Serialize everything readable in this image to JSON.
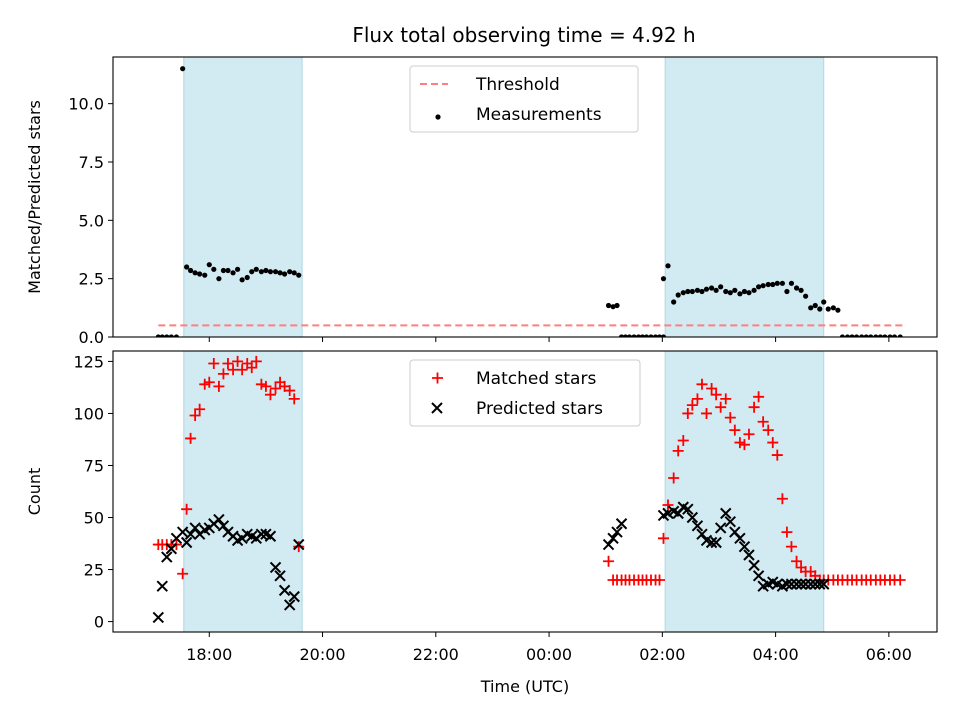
{
  "title": "Flux total observing time = 4.92 h",
  "colors": {
    "shade": "#add8e6",
    "threshold": "#ff7f7f",
    "measurement": "#000000",
    "matched": "#ff0000",
    "predicted": "#000000"
  },
  "chart_data": [
    {
      "type": "scatter",
      "ylabel": "Matched/Predicted stars",
      "ylim": [
        0,
        12
      ],
      "yticks": [
        "0.0",
        "2.5",
        "5.0",
        "7.5",
        "10.0"
      ],
      "ytick_values": [
        0,
        2.5,
        5,
        7.5,
        10
      ],
      "legend": [
        "Threshold",
        "Measurements"
      ],
      "legend_placement": "upper center",
      "threshold": {
        "name": "Threshold",
        "value": 0.5,
        "x": [
          17.1,
          30.25
        ]
      },
      "shaded_intervals": [
        [
          17.55,
          19.64
        ],
        [
          26.05,
          28.85
        ]
      ],
      "series": [
        {
          "name": "Measurements",
          "x": [
            17.1,
            17.17,
            17.25,
            17.33,
            17.42,
            17.53,
            17.6,
            17.67,
            17.75,
            17.83,
            17.92,
            18,
            18.08,
            18.17,
            18.25,
            18.33,
            18.42,
            18.5,
            18.58,
            18.67,
            18.75,
            18.83,
            18.92,
            19,
            19.08,
            19.17,
            19.25,
            19.33,
            19.42,
            19.5,
            19.58,
            25.05,
            25.13,
            25.2,
            25.28,
            25.35,
            25.42,
            25.5,
            25.58,
            25.65,
            25.72,
            25.8,
            25.88,
            25.95,
            26.02,
            26.02,
            26.1,
            26.2,
            26.28,
            26.37,
            26.45,
            26.53,
            26.62,
            26.7,
            26.78,
            26.87,
            26.95,
            27.03,
            27.12,
            27.2,
            27.28,
            27.37,
            27.45,
            27.53,
            27.62,
            27.7,
            27.78,
            27.87,
            27.95,
            28.03,
            28.12,
            28.2,
            28.28,
            28.37,
            28.45,
            28.53,
            28.62,
            28.7,
            28.78,
            28.85,
            28.93,
            29.02,
            29.1,
            29.18,
            29.27,
            29.35,
            29.43,
            29.52,
            29.6,
            29.68,
            29.77,
            29.85,
            29.93,
            30.02,
            30.1,
            30.2
          ],
          "y": [
            0,
            0,
            0,
            0,
            0,
            11.5,
            3,
            2.85,
            2.75,
            2.7,
            2.65,
            3.1,
            2.9,
            2.5,
            2.85,
            2.85,
            2.75,
            2.9,
            2.45,
            2.55,
            2.8,
            2.9,
            2.8,
            2.85,
            2.8,
            2.8,
            2.75,
            2.7,
            2.8,
            2.75,
            2.65,
            1.35,
            1.3,
            1.35,
            0,
            0,
            0,
            0,
            0,
            0,
            0,
            0,
            0,
            0,
            0,
            2.5,
            3.05,
            1.5,
            1.8,
            1.9,
            1.95,
            1.95,
            2,
            1.95,
            2.05,
            2.1,
            2,
            2.15,
            1.95,
            1.9,
            2,
            1.85,
            1.95,
            1.9,
            2,
            2.15,
            2.2,
            2.25,
            2.25,
            2.3,
            2.3,
            1.95,
            2.3,
            2.1,
            2,
            1.75,
            1.25,
            1.35,
            1.2,
            1.5,
            1.2,
            1.25,
            1.15,
            0,
            0,
            0,
            0,
            0,
            0,
            0,
            0,
            0,
            0,
            0,
            0,
            0
          ]
        }
      ]
    },
    {
      "type": "scatter",
      "ylabel": "Count",
      "xlabel": "Time (UTC)",
      "ylim": [
        -5,
        130
      ],
      "yticks": [
        "0",
        "25",
        "50",
        "75",
        "100",
        "125"
      ],
      "ytick_values": [
        0,
        25,
        50,
        75,
        100,
        125
      ],
      "xlim": [
        16.3,
        30.85
      ],
      "xticks": [
        "18:00",
        "20:00",
        "22:00",
        "00:00",
        "02:00",
        "04:00",
        "06:00"
      ],
      "xtick_values": [
        18,
        20,
        22,
        24,
        26,
        28,
        30
      ],
      "legend": [
        "Matched stars",
        "Predicted stars"
      ],
      "legend_placement": "upper center",
      "shaded_intervals": [
        [
          17.55,
          19.64
        ],
        [
          26.05,
          28.85
        ]
      ],
      "series": [
        {
          "name": "Matched stars",
          "marker": "+",
          "x": [
            17.1,
            17.17,
            17.25,
            17.33,
            17.42,
            17.53,
            17.6,
            17.67,
            17.75,
            17.83,
            17.92,
            18,
            18.08,
            18.17,
            18.25,
            18.33,
            18.42,
            18.5,
            18.58,
            18.67,
            18.75,
            18.83,
            18.92,
            19,
            19.08,
            19.17,
            19.25,
            19.33,
            19.42,
            19.5,
            19.58,
            25.05,
            25.13,
            25.2,
            25.28,
            25.35,
            25.42,
            25.5,
            25.58,
            25.65,
            25.72,
            25.8,
            25.88,
            25.95,
            26.02,
            26.1,
            26.2,
            26.28,
            26.37,
            26.45,
            26.53,
            26.62,
            26.7,
            26.78,
            26.87,
            26.95,
            27.03,
            27.12,
            27.2,
            27.28,
            27.37,
            27.45,
            27.53,
            27.62,
            27.7,
            27.78,
            27.87,
            27.95,
            28.03,
            28.12,
            28.2,
            28.28,
            28.37,
            28.45,
            28.53,
            28.62,
            28.7,
            28.78,
            28.85,
            28.93,
            29.02,
            29.1,
            29.18,
            29.27,
            29.35,
            29.43,
            29.52,
            29.6,
            29.68,
            29.77,
            29.85,
            29.93,
            30.02,
            30.1,
            30.2
          ],
          "y": [
            37,
            37,
            37,
            37,
            37,
            23,
            54,
            88,
            99,
            102,
            114,
            115,
            124,
            113,
            119,
            124,
            121,
            125,
            121,
            124,
            122,
            125,
            114,
            113,
            109,
            112,
            115,
            113,
            111,
            107,
            36,
            29,
            20,
            20,
            20,
            20,
            20,
            20,
            20,
            20,
            20,
            20,
            20,
            20,
            40,
            56,
            69,
            82,
            87,
            100,
            104,
            107,
            114,
            100,
            112,
            109,
            103,
            107,
            98,
            92,
            86,
            85,
            90,
            103,
            108,
            96,
            92,
            86,
            80,
            59,
            43,
            36,
            29,
            26,
            24,
            24,
            22,
            20,
            20,
            20,
            20,
            20,
            20,
            20,
            20,
            20,
            20,
            20,
            20,
            20,
            20,
            20,
            20,
            20,
            20
          ],
          "xfix": true
        },
        {
          "name": "Predicted stars",
          "marker": "x",
          "x": [
            17.1,
            17.17,
            17.25,
            17.33,
            17.42,
            17.53,
            17.6,
            17.67,
            17.75,
            17.83,
            17.92,
            18,
            18.08,
            18.17,
            18.25,
            18.33,
            18.42,
            18.5,
            18.58,
            18.67,
            18.75,
            18.83,
            18.92,
            19,
            19.08,
            19.17,
            19.25,
            19.33,
            19.42,
            19.5,
            19.58,
            25.05,
            25.13,
            25.2,
            25.28,
            26.02,
            26.1,
            26.2,
            26.28,
            26.37,
            26.45,
            26.53,
            26.62,
            26.7,
            26.78,
            26.87,
            26.95,
            27.03,
            27.12,
            27.2,
            27.28,
            27.37,
            27.45,
            27.53,
            27.62,
            27.7,
            27.78,
            27.87,
            27.95,
            28.03,
            28.12,
            28.2,
            28.28,
            28.37,
            28.45,
            28.53,
            28.62,
            28.7,
            28.78,
            28.85
          ],
          "y": [
            2,
            17,
            31,
            35,
            40,
            43,
            38,
            42,
            45,
            42,
            44,
            45,
            47,
            49,
            46,
            43,
            41,
            39,
            40,
            42,
            41,
            40,
            42,
            42,
            41,
            26,
            22,
            15,
            8,
            12,
            37,
            37,
            40,
            43,
            47,
            51,
            52,
            53,
            52,
            55,
            54,
            50,
            46,
            42,
            39,
            38,
            38,
            45,
            52,
            48,
            43,
            40,
            36,
            32,
            27,
            22,
            17,
            18,
            19,
            18,
            17,
            18,
            18,
            18,
            18,
            18,
            18,
            18,
            18,
            18
          ]
        }
      ]
    }
  ]
}
